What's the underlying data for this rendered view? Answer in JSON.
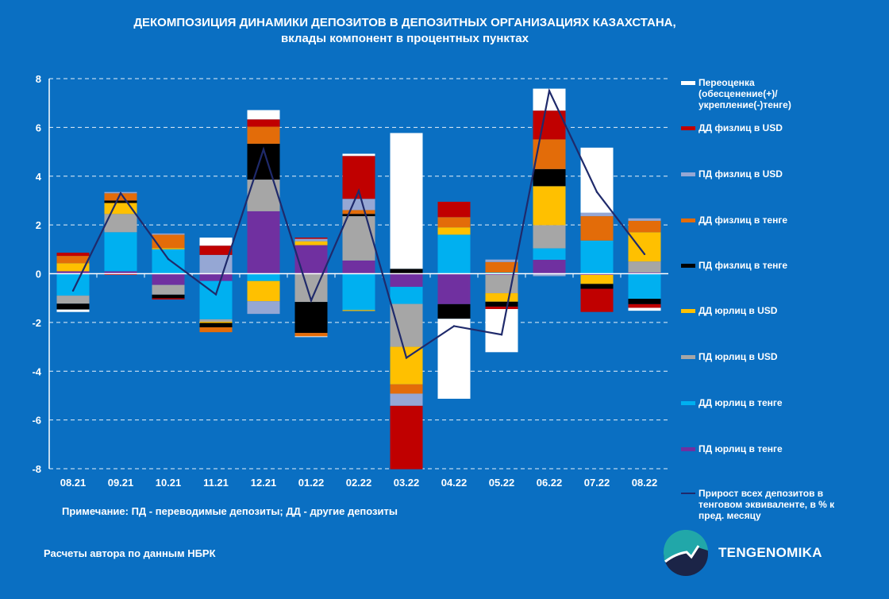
{
  "chart_data": {
    "type": "bar",
    "stacked": true,
    "title": "ДЕКОМПОЗИЦИЯ ДИНАМИКИ ДЕПОЗИТОВ В ДЕПОЗИТНЫХ ОРГАНИЗАЦИЯХ КАЗАХСТАНА,",
    "subtitle": "вклады компонент в процентных пунктах",
    "categories": [
      "08.21",
      "09.21",
      "10.21",
      "11.21",
      "12.21",
      "01.22",
      "02.22",
      "03.22",
      "04.22",
      "05.22",
      "06.22",
      "07.22",
      "08.22"
    ],
    "ylim": [
      -8,
      8
    ],
    "yticks": [
      8,
      6,
      4,
      2,
      0,
      -2,
      -4,
      -6,
      -8
    ],
    "grid": true,
    "legend_position": "right",
    "series": [
      {
        "name": "ПД юрлиц в тенге",
        "color": "#7030A0",
        "values": [
          0.1,
          0.1,
          -0.46,
          -0.3,
          2.56,
          1.17,
          0.54,
          -0.54,
          -1.25,
          -0.05,
          0.57,
          -0.05,
          0.05
        ]
      },
      {
        "name": "ДД юрлиц в тенге",
        "color": "#00B0F0",
        "values": [
          -0.9,
          1.6,
          1.0,
          -1.57,
          -0.3,
          0,
          -1.49,
          -0.7,
          1.6,
          0.05,
          0.47,
          1.36,
          -1.03
        ]
      },
      {
        "name": "ПД юрлиц в USD",
        "color": "#A6A6A6",
        "values": [
          -0.33,
          0.75,
          -0.4,
          -0.1,
          1.3,
          -1.16,
          1.82,
          -1.76,
          0,
          -0.75,
          0.95,
          0,
          0.45
        ]
      },
      {
        "name": "ДД юрлиц в USD",
        "color": "#FFC000",
        "values": [
          0.33,
          0.45,
          0.05,
          -0.05,
          -0.83,
          0.16,
          -0.04,
          -1.54,
          0.3,
          -0.35,
          1.6,
          -0.37,
          1.2
        ]
      },
      {
        "name": "ПД физлиц в тенге",
        "color": "#000000",
        "values": [
          -0.24,
          0.1,
          -0.15,
          -0.18,
          1.47,
          -1.27,
          0.09,
          0.2,
          -0.6,
          -0.2,
          0.7,
          -0.2,
          -0.22
        ]
      },
      {
        "name": "ДД физлиц в тенге",
        "color": "#E36C09",
        "values": [
          0.3,
          0.3,
          0.55,
          -0.2,
          0.7,
          -0.14,
          0.16,
          -0.38,
          0.42,
          0.43,
          1.22,
          1.0,
          0.47
        ]
      },
      {
        "name": "ПД физлиц в USD",
        "color": "#95A7D4",
        "values": [
          0,
          0.05,
          0.05,
          0.77,
          -0.52,
          0.1,
          0.46,
          -0.5,
          0,
          0.1,
          -0.1,
          0.14,
          0.1
        ]
      },
      {
        "name": "ДД физлиц в USD",
        "color": "#C00000",
        "values": [
          0.13,
          -0.05,
          -0.05,
          0.38,
          0.3,
          0.05,
          1.76,
          -2.6,
          0.63,
          -0.1,
          1.18,
          -0.95,
          -0.15
        ]
      },
      {
        "name": "Переоценка (обесценение(+)/укрепление(-)тенге)",
        "color": "#FFFFFF",
        "values": [
          -0.1,
          0,
          0,
          0.33,
          0.38,
          -0.03,
          0.09,
          5.57,
          -3.28,
          -1.77,
          0.9,
          2.67,
          -0.12
        ]
      }
    ],
    "line": {
      "name": "Прирост всех депозитов в тенговом эквиваленте, в % к пред. месяцу",
      "color": "#1F2A6B",
      "values": [
        -0.7,
        3.3,
        0.6,
        -0.85,
        5.1,
        -1.1,
        3.4,
        -3.45,
        -2.15,
        -2.5,
        7.5,
        3.35,
        0.8
      ]
    }
  },
  "legend_order": [
    8,
    7,
    6,
    5,
    4,
    3,
    2,
    1,
    0
  ],
  "note": "Примечание: ПД - переводимые депозиты; ДД - другие депозиты",
  "source": "Расчеты автора по данным НБРК",
  "brand": "TENGENOMIKA",
  "colors": {
    "background": "#0A6FC2"
  }
}
